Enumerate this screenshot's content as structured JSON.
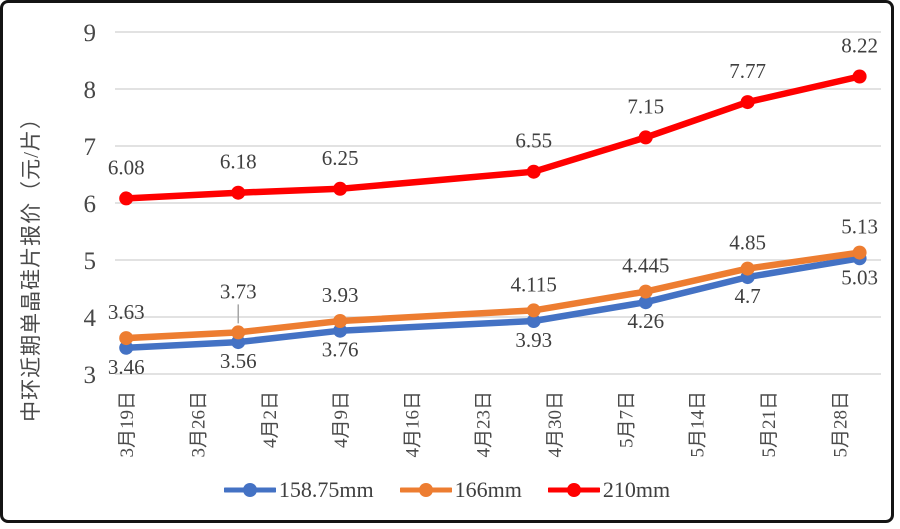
{
  "frame": {
    "background": "#ffffff",
    "border_color": "#141414"
  },
  "chart_data": {
    "type": "line",
    "title": "",
    "y_axis_title": "中环近期单晶硅片报价（元/片）",
    "ylim": [
      3,
      9
    ],
    "y_ticks": [
      "9",
      "8",
      "7",
      "6",
      "5",
      "4",
      "3"
    ],
    "y_tick_values": [
      9,
      8,
      7,
      6,
      5,
      4,
      3
    ],
    "grid": "horizontal",
    "legend_position": "bottom",
    "x_tick_labels": [
      "3月19日",
      "3月26日",
      "4月2日",
      "4月9日",
      "4月16日",
      "4月23日",
      "4月30日",
      "5月7日",
      "5月14日",
      "5月21日",
      "5月28日"
    ],
    "x_tick_days": [
      0,
      7,
      14,
      21,
      28,
      35,
      42,
      49,
      56,
      63,
      70
    ],
    "x_domain_days": [
      -1,
      74
    ],
    "point_days": [
      0,
      11,
      21,
      40,
      51,
      61,
      72
    ],
    "series": [
      {
        "name": "158.75mm",
        "color": "#4472c4",
        "values": [
          3.46,
          3.56,
          3.76,
          3.93,
          4.26,
          4.7,
          5.03
        ],
        "labels": [
          "3.46",
          "3.56",
          "3.76",
          "3.93",
          "4.26",
          "4.7",
          "5.03"
        ],
        "label_side": "below"
      },
      {
        "name": "166mm",
        "color": "#ed7d31",
        "values": [
          3.63,
          3.73,
          3.93,
          4.115,
          4.445,
          4.85,
          5.13
        ],
        "labels": [
          "3.63",
          "3.73",
          "3.93",
          "4.115",
          "4.445",
          "4.85",
          "5.13"
        ],
        "label_side": "above",
        "leader_index": 1
      },
      {
        "name": "210mm",
        "color": "#ff0000",
        "values": [
          6.08,
          6.18,
          6.25,
          6.55,
          7.15,
          7.77,
          8.22
        ],
        "labels": [
          "6.08",
          "6.18",
          "6.25",
          "6.55",
          "7.15",
          "7.77",
          "8.22"
        ],
        "label_side": "above"
      }
    ],
    "colors": {
      "gridline": "#d9d9d9",
      "leader_line": "#a6a6a6",
      "axis_text": "#4a4a4a",
      "data_label_text": "#3f3f3f"
    }
  }
}
